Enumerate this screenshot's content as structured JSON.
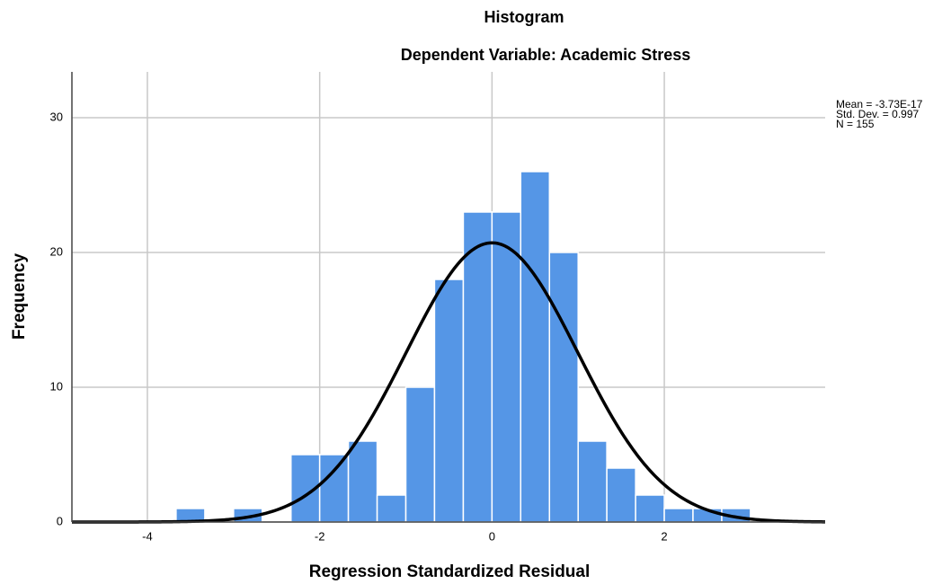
{
  "chart_data": {
    "type": "histogram",
    "title": "Histogram",
    "subtitle": "Dependent Variable: Academic Stress",
    "x_label": "Regression Standardized Residual",
    "y_label": "Frequency",
    "bins": [
      -3.667,
      -3.333,
      -3.0,
      -2.667,
      -2.333,
      -2.0,
      -1.667,
      -1.333,
      -1.0,
      -0.667,
      -0.333,
      0,
      0.333,
      0.667,
      1.0,
      1.333,
      1.667,
      2.0,
      2.333,
      2.667,
      3.0
    ],
    "counts": [
      1,
      0,
      1,
      0,
      5,
      5,
      6,
      2,
      10,
      18,
      23,
      23,
      26,
      20,
      6,
      4,
      2,
      1,
      1,
      1
    ],
    "color": "#5596e6",
    "xlim": [
      -4.876,
      3.867
    ],
    "xticks": [
      -4,
      -2,
      0,
      2
    ],
    "ylim": [
      0,
      33.4
    ],
    "yticks": [
      0,
      10,
      20,
      30
    ],
    "grid": true,
    "stats": {
      "mean": {
        "value": -3.73e-17,
        "label": "Mean = -3.73E-17"
      },
      "std": {
        "value": 0.997,
        "label": "Std. Dev. = 0.997"
      },
      "n": {
        "value": 155,
        "label": "N = 155"
      }
    },
    "curve_color": "#000000"
  }
}
